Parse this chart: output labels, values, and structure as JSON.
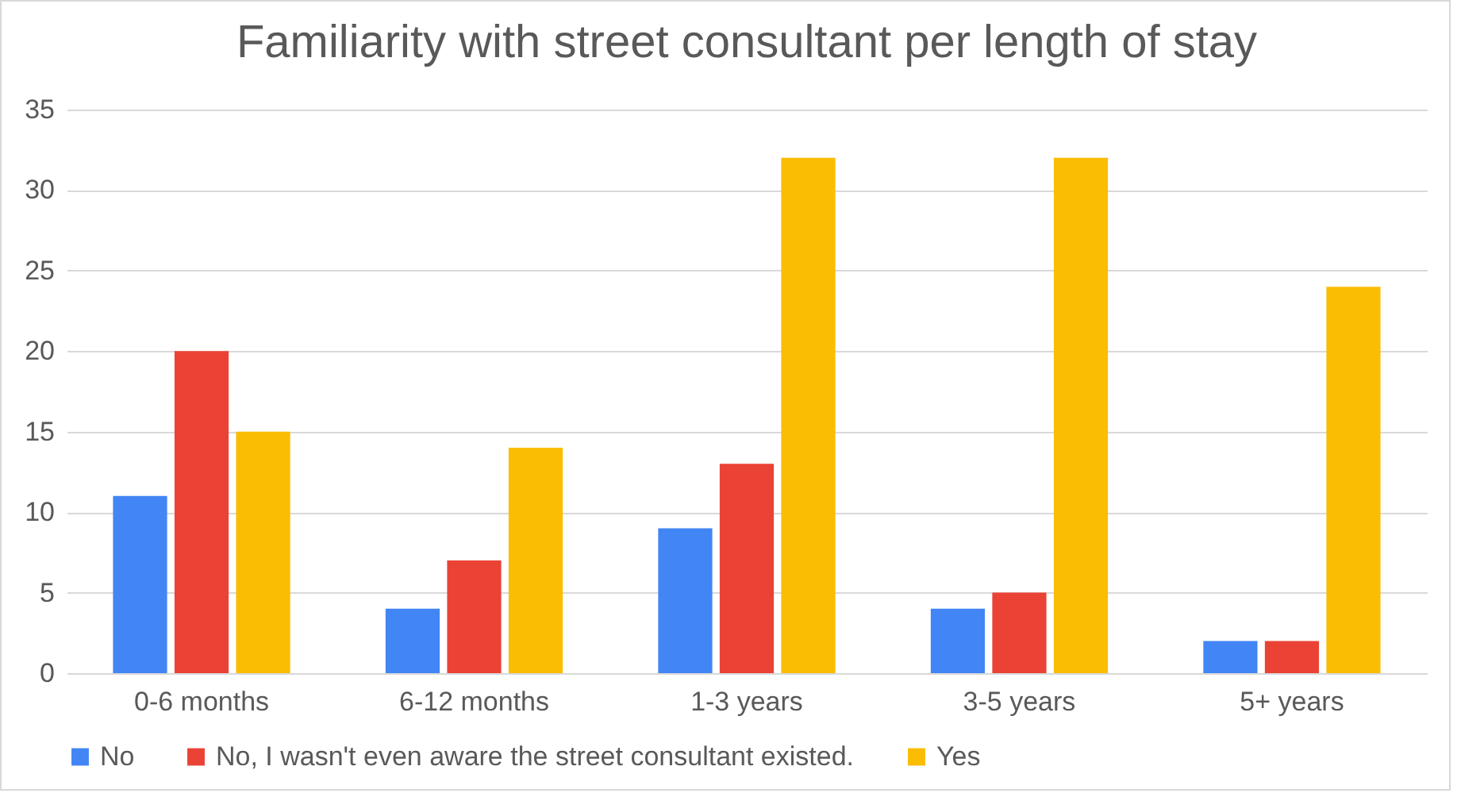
{
  "chart_data": {
    "type": "bar",
    "title": "Familiarity with street consultant per length of stay",
    "categories": [
      "0-6 months",
      "6-12 months",
      "1-3 years",
      "3-5 years",
      "5+ years"
    ],
    "series": [
      {
        "name": "No",
        "color": "#4285f4",
        "values": [
          11,
          4,
          9,
          4,
          2
        ]
      },
      {
        "name": "No, I wasn't even aware the street consultant existed.",
        "color": "#ea4335",
        "values": [
          20,
          7,
          13,
          5,
          2
        ]
      },
      {
        "name": "Yes",
        "color": "#fbbc04",
        "values": [
          15,
          14,
          32,
          32,
          24
        ]
      }
    ],
    "ylim": [
      0,
      35
    ],
    "yticks": [
      0,
      5,
      10,
      15,
      20,
      25,
      30,
      35
    ],
    "grid": "y",
    "legend": "bottom"
  }
}
